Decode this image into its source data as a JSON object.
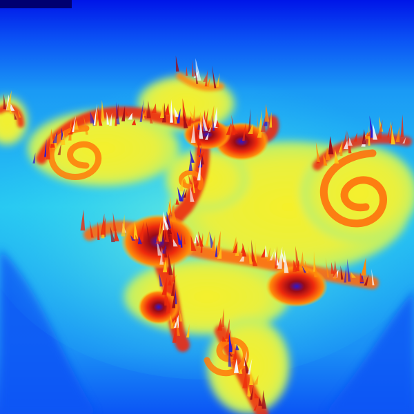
{
  "image": {
    "kind": "3D rendered fractal heightmap (spiral / seahorse-valley style)",
    "palette": {
      "deep_blue": "#0015e8",
      "blue": "#0b55f5",
      "sky": "#1a9af5",
      "cyan": "#28d8f2",
      "pale_cyan": "#7af2d8",
      "yellow": "#f6f02a",
      "gold": "#ffc818",
      "orange": "#ff8a0a",
      "red": "#ee2a0c",
      "maroon": "#9a0a18",
      "violet": "#2c18d0",
      "white": "#f6fbff",
      "corner_dark": "#000070"
    }
  }
}
